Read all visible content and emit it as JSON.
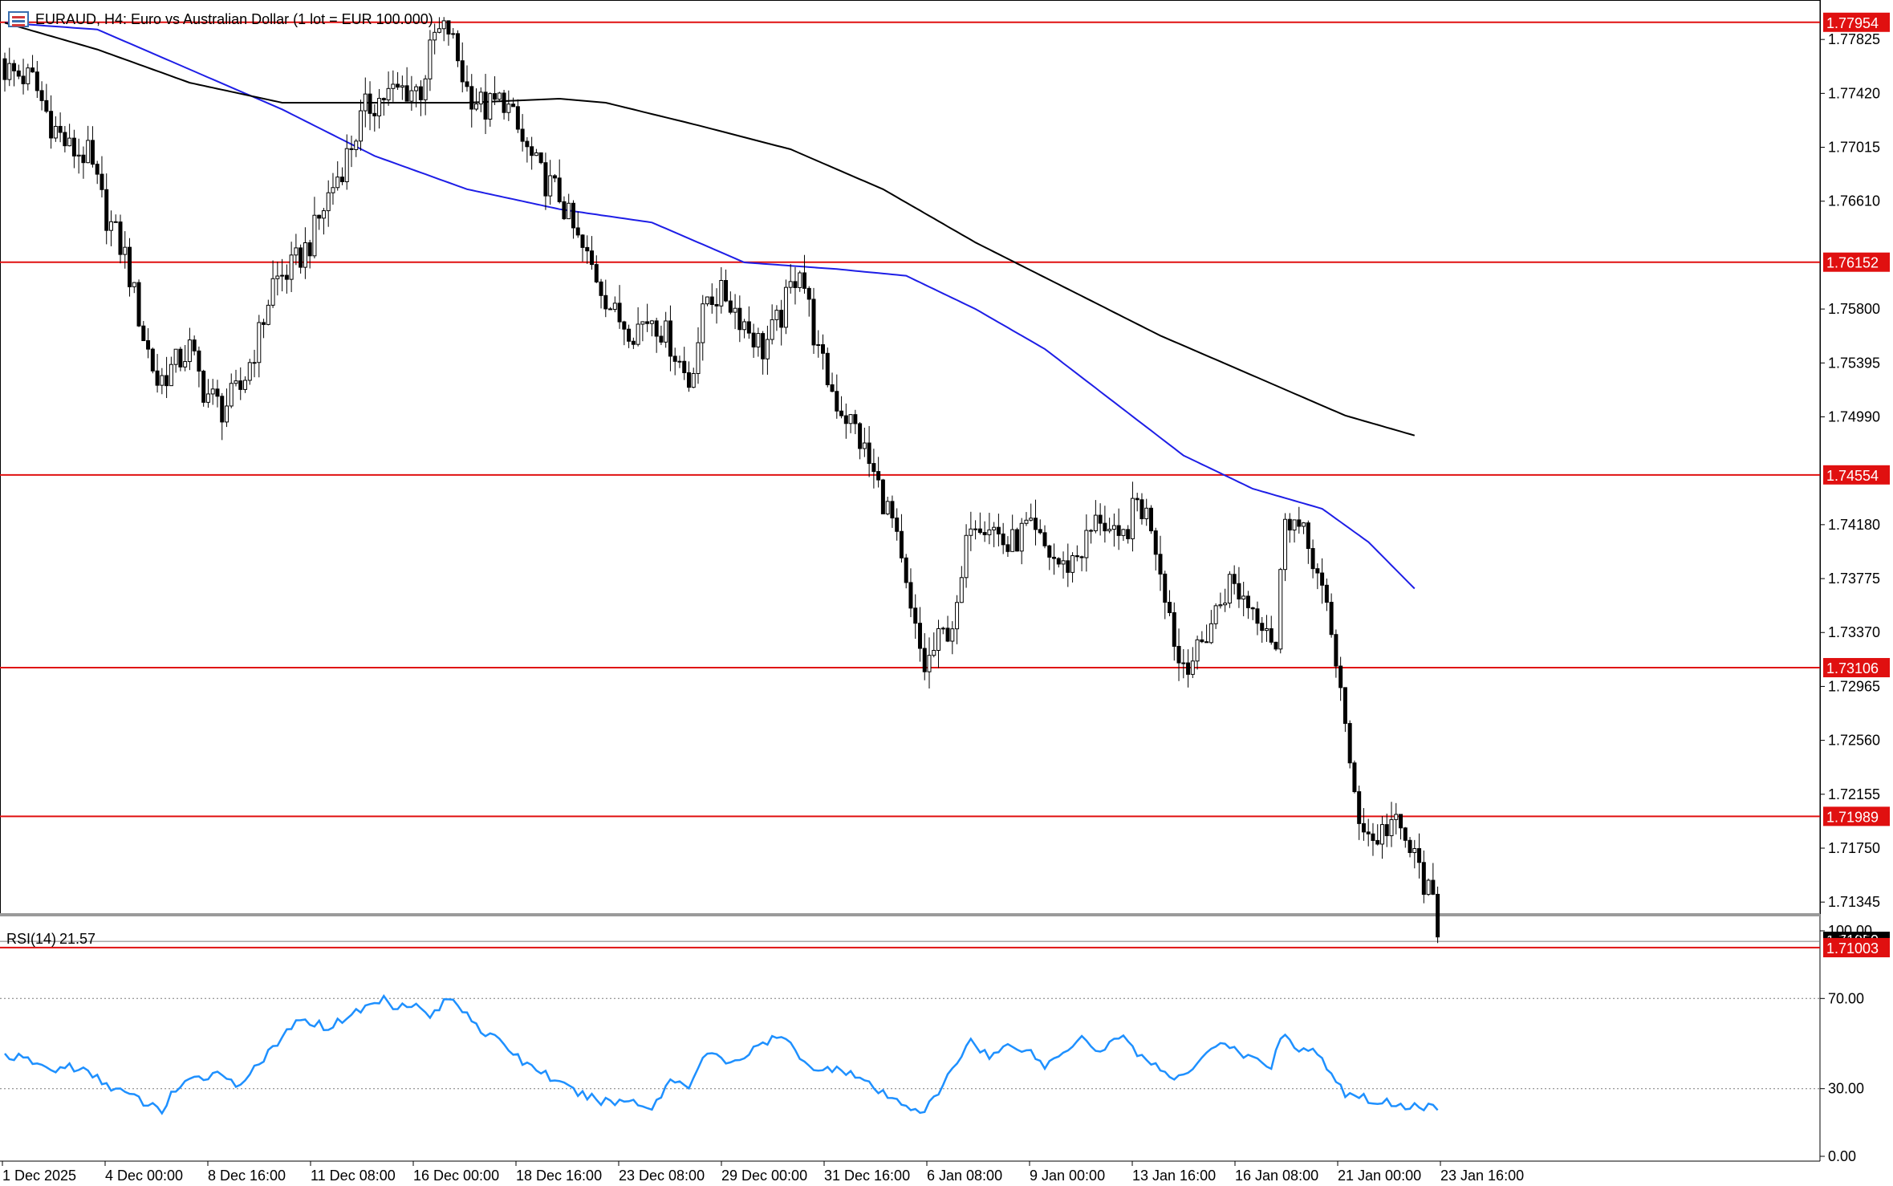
{
  "window": {
    "symbol_title": "EURAUD, H4:  Euro vs Australian Dollar (1 lot = EUR 100.000)"
  },
  "colors": {
    "background": "#ffffff",
    "grid_axis": "#000000",
    "bull_candle": "#ffffff",
    "bear_candle": "#000000",
    "ma_fast": "#1e1ee6",
    "ma_slow": "#000000",
    "level_line": "#e01010",
    "level_label_bg": "#e01010",
    "rsi_line": "#1e90ff",
    "rsi_levels": "#7a7a7a"
  },
  "chart_data": [
    {
      "type": "candlestick",
      "title": "EURAUD, H4:  Euro vs Australian Dollar (1 lot = EUR 100.000)",
      "x_tick_labels": [
        "1 Dec 2025",
        "4 Dec 00:00",
        "8 Dec 16:00",
        "11 Dec 08:00",
        "16 Dec 00:00",
        "18 Dec 16:00",
        "23 Dec 08:00",
        "29 Dec 00:00",
        "31 Dec 16:00",
        "6 Jan 08:00",
        "9 Jan 00:00",
        "13 Jan 16:00",
        "16 Jan 08:00",
        "21 Jan 00:00",
        "23 Jan 16:00"
      ],
      "y_tick_labels": [
        "1.77825",
        "1.77420",
        "1.77015",
        "1.76610",
        "1.75800",
        "1.75395",
        "1.74990",
        "1.74180",
        "1.73775",
        "1.73370",
        "1.72965",
        "1.72560",
        "1.72155",
        "1.71750",
        "1.71345"
      ],
      "ylim": [
        1.7089,
        1.7822
      ],
      "horizontal_levels": [
        "1.77954",
        "1.76152",
        "1.74554",
        "1.73106",
        "1.71989",
        "1.71003"
      ],
      "current_price": "1.71050",
      "anchor_closes": [
        [
          0,
          1.776
        ],
        [
          6,
          1.7752
        ],
        [
          10,
          1.772
        ],
        [
          14,
          1.77
        ],
        [
          18,
          1.7695
        ],
        [
          22,
          1.765
        ],
        [
          26,
          1.762
        ],
        [
          30,
          1.756
        ],
        [
          33,
          1.7525
        ],
        [
          36,
          1.7535
        ],
        [
          40,
          1.755
        ],
        [
          43,
          1.752
        ],
        [
          47,
          1.7505
        ],
        [
          51,
          1.752
        ],
        [
          55,
          1.756
        ],
        [
          58,
          1.76
        ],
        [
          62,
          1.761
        ],
        [
          66,
          1.763
        ],
        [
          70,
          1.7665
        ],
        [
          74,
          1.7695
        ],
        [
          78,
          1.773
        ],
        [
          82,
          1.774
        ],
        [
          86,
          1.7745
        ],
        [
          90,
          1.7745
        ],
        [
          93,
          1.7785
        ],
        [
          96,
          1.779
        ],
        [
          100,
          1.7745
        ],
        [
          104,
          1.773
        ],
        [
          108,
          1.7738
        ],
        [
          112,
          1.7705
        ],
        [
          116,
          1.768
        ],
        [
          120,
          1.7665
        ],
        [
          124,
          1.763
        ],
        [
          128,
          1.7605
        ],
        [
          132,
          1.7575
        ],
        [
          136,
          1.7565
        ],
        [
          140,
          1.7575
        ],
        [
          144,
          1.7555
        ],
        [
          148,
          1.7525
        ],
        [
          152,
          1.759
        ],
        [
          156,
          1.759
        ],
        [
          160,
          1.757
        ],
        [
          164,
          1.755
        ],
        [
          168,
          1.7575
        ],
        [
          172,
          1.7615
        ],
        [
          176,
          1.7545
        ],
        [
          180,
          1.751
        ],
        [
          184,
          1.749
        ],
        [
          188,
          1.7455
        ],
        [
          192,
          1.742
        ],
        [
          196,
          1.735
        ],
        [
          199,
          1.731
        ],
        [
          202,
          1.733
        ],
        [
          206,
          1.735
        ],
        [
          209,
          1.7425
        ],
        [
          213,
          1.742
        ],
        [
          217,
          1.74
        ],
        [
          221,
          1.7415
        ],
        [
          225,
          1.74
        ],
        [
          229,
          1.7385
        ],
        [
          233,
          1.74
        ],
        [
          237,
          1.7425
        ],
        [
          241,
          1.74
        ],
        [
          245,
          1.7435
        ],
        [
          248,
          1.742
        ],
        [
          251,
          1.737
        ],
        [
          254,
          1.7315
        ],
        [
          258,
          1.732
        ],
        [
          261,
          1.7345
        ],
        [
          265,
          1.7375
        ],
        [
          269,
          1.736
        ],
        [
          273,
          1.7345
        ],
        [
          275,
          1.7325
        ],
        [
          277,
          1.743
        ],
        [
          279,
          1.742
        ],
        [
          283,
          1.7395
        ],
        [
          286,
          1.735
        ],
        [
          289,
          1.73
        ],
        [
          291,
          1.723
        ],
        [
          293,
          1.72
        ],
        [
          296,
          1.718
        ],
        [
          300,
          1.7195
        ],
        [
          303,
          1.718
        ],
        [
          306,
          1.716
        ],
        [
          309,
          1.713
        ],
        [
          310,
          1.7105
        ]
      ],
      "series": [
        {
          "name": "MA fast",
          "anchors": [
            [
              0,
              1.7795
            ],
            [
              20,
              1.779
            ],
            [
              40,
              1.776
            ],
            [
              60,
              1.773
            ],
            [
              80,
              1.7695
            ],
            [
              100,
              1.767
            ],
            [
              120,
              1.7655
            ],
            [
              140,
              1.7645
            ],
            [
              160,
              1.7615
            ],
            [
              180,
              1.761
            ],
            [
              195,
              1.7605
            ],
            [
              210,
              1.758
            ],
            [
              225,
              1.755
            ],
            [
              240,
              1.751
            ],
            [
              255,
              1.747
            ],
            [
              270,
              1.7445
            ],
            [
              285,
              1.743
            ],
            [
              295,
              1.7405
            ],
            [
              305,
              1.737
            ]
          ]
        },
        {
          "name": "MA slow",
          "anchors": [
            [
              0,
              1.7795
            ],
            [
              20,
              1.7775
            ],
            [
              40,
              1.775
            ],
            [
              60,
              1.7735
            ],
            [
              80,
              1.7735
            ],
            [
              100,
              1.7735
            ],
            [
              120,
              1.7738
            ],
            [
              130,
              1.7735
            ],
            [
              150,
              1.7718
            ],
            [
              170,
              1.77
            ],
            [
              190,
              1.767
            ],
            [
              210,
              1.763
            ],
            [
              230,
              1.7595
            ],
            [
              250,
              1.756
            ],
            [
              270,
              1.753
            ],
            [
              290,
              1.75
            ],
            [
              305,
              1.7485
            ]
          ]
        }
      ]
    },
    {
      "type": "line",
      "title": "RSI(14) 21.57",
      "indicator_name": "RSI(14)",
      "indicator_value": "21.57",
      "y_tick_labels": [
        "100.00",
        "70.00",
        "30.00",
        "0.00"
      ],
      "ylim": [
        0,
        100
      ],
      "levels": [
        70,
        30
      ],
      "values_anchors": [
        [
          0,
          45
        ],
        [
          6,
          42
        ],
        [
          10,
          38
        ],
        [
          14,
          40
        ],
        [
          18,
          37
        ],
        [
          22,
          32
        ],
        [
          26,
          28
        ],
        [
          30,
          24
        ],
        [
          34,
          20
        ],
        [
          36,
          28
        ],
        [
          40,
          33
        ],
        [
          44,
          36
        ],
        [
          47,
          38
        ],
        [
          50,
          30
        ],
        [
          54,
          40
        ],
        [
          58,
          47
        ],
        [
          62,
          58
        ],
        [
          66,
          60
        ],
        [
          70,
          57
        ],
        [
          74,
          62
        ],
        [
          78,
          66
        ],
        [
          82,
          70
        ],
        [
          84,
          67
        ],
        [
          88,
          68
        ],
        [
          92,
          62
        ],
        [
          96,
          70
        ],
        [
          100,
          64
        ],
        [
          104,
          54
        ],
        [
          108,
          50
        ],
        [
          112,
          42
        ],
        [
          116,
          38
        ],
        [
          120,
          32
        ],
        [
          124,
          28
        ],
        [
          128,
          25
        ],
        [
          132,
          24
        ],
        [
          136,
          25
        ],
        [
          140,
          21
        ],
        [
          144,
          34
        ],
        [
          148,
          32
        ],
        [
          152,
          46
        ],
        [
          156,
          42
        ],
        [
          160,
          44
        ],
        [
          164,
          50
        ],
        [
          168,
          53
        ],
        [
          172,
          45
        ],
        [
          176,
          37
        ],
        [
          180,
          40
        ],
        [
          184,
          36
        ],
        [
          188,
          30
        ],
        [
          192,
          25
        ],
        [
          196,
          22
        ],
        [
          199,
          20
        ],
        [
          202,
          28
        ],
        [
          206,
          42
        ],
        [
          209,
          52
        ],
        [
          213,
          44
        ],
        [
          217,
          49
        ],
        [
          221,
          48
        ],
        [
          225,
          40
        ],
        [
          229,
          46
        ],
        [
          233,
          54
        ],
        [
          237,
          46
        ],
        [
          241,
          54
        ],
        [
          245,
          46
        ],
        [
          248,
          42
        ],
        [
          251,
          36
        ],
        [
          254,
          34
        ],
        [
          258,
          42
        ],
        [
          262,
          50
        ],
        [
          266,
          47
        ],
        [
          270,
          43
        ],
        [
          274,
          40
        ],
        [
          276,
          54
        ],
        [
          280,
          48
        ],
        [
          284,
          46
        ],
        [
          288,
          32
        ],
        [
          290,
          28
        ],
        [
          294,
          26
        ],
        [
          298,
          24
        ],
        [
          302,
          23
        ],
        [
          306,
          22
        ],
        [
          310,
          21.57
        ]
      ]
    }
  ]
}
